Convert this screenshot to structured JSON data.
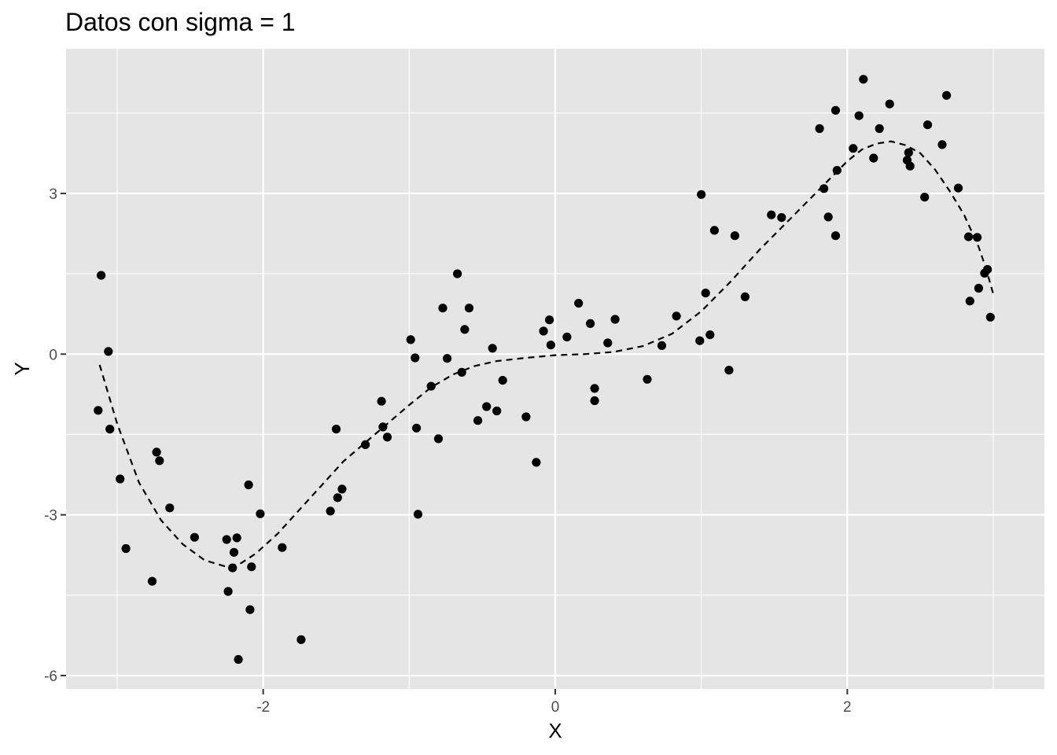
{
  "chart_data": {
    "type": "scatter",
    "title": "Datos con sigma = 1",
    "xlabel": "X",
    "ylabel": "Y",
    "xlim": [
      -3.35,
      3.35
    ],
    "ylim": [
      -6.25,
      5.7
    ],
    "x_ticks": [
      -2,
      0,
      2
    ],
    "x_tick_labels": [
      "-2",
      "0",
      "2"
    ],
    "y_ticks": [
      -6,
      -3,
      0,
      3
    ],
    "y_tick_labels": [
      "-6",
      "-3",
      "0",
      "3"
    ],
    "grid": true,
    "legend": "none",
    "panel_color": "#e5e5e5",
    "grid_color": "#ffffff",
    "point_color": "#000000",
    "curve_style": "dashed",
    "curve_color": "#000000",
    "series": [
      {
        "kind": "points",
        "points": [
          [
            -3.13,
            -1.05
          ],
          [
            -3.11,
            1.47
          ],
          [
            -3.06,
            0.05
          ],
          [
            -3.05,
            -1.4
          ],
          [
            -2.98,
            -2.33
          ],
          [
            -2.94,
            -3.63
          ],
          [
            -2.76,
            -4.24
          ],
          [
            -2.73,
            -1.83
          ],
          [
            -2.71,
            -1.99
          ],
          [
            -2.64,
            -2.87
          ],
          [
            -2.47,
            -3.42
          ],
          [
            -2.25,
            -3.46
          ],
          [
            -2.24,
            -4.43
          ],
          [
            -2.21,
            -3.99
          ],
          [
            -2.2,
            -3.7
          ],
          [
            -2.18,
            -3.43
          ],
          [
            -2.17,
            -5.7
          ],
          [
            -2.1,
            -2.44
          ],
          [
            -2.09,
            -4.77
          ],
          [
            -2.08,
            -3.97
          ],
          [
            -2.02,
            -2.98
          ],
          [
            -1.87,
            -3.61
          ],
          [
            -1.74,
            -5.33
          ],
          [
            -1.54,
            -2.93
          ],
          [
            -1.5,
            -1.4
          ],
          [
            -1.49,
            -2.68
          ],
          [
            -1.46,
            -2.52
          ],
          [
            -1.3,
            -1.69
          ],
          [
            -1.19,
            -0.88
          ],
          [
            -1.18,
            -1.36
          ],
          [
            -1.15,
            -1.55
          ],
          [
            -0.99,
            0.27
          ],
          [
            -0.96,
            -0.07
          ],
          [
            -0.95,
            -1.38
          ],
          [
            -0.94,
            -2.99
          ],
          [
            -0.85,
            -0.6
          ],
          [
            -0.8,
            -1.58
          ],
          [
            -0.77,
            0.86
          ],
          [
            -0.74,
            -0.08
          ],
          [
            -0.67,
            1.5
          ],
          [
            -0.64,
            -0.34
          ],
          [
            -0.62,
            0.46
          ],
          [
            -0.59,
            0.86
          ],
          [
            -0.53,
            -1.24
          ],
          [
            -0.47,
            -0.98
          ],
          [
            -0.43,
            0.11
          ],
          [
            -0.4,
            -1.06
          ],
          [
            -0.36,
            -0.49
          ],
          [
            -0.2,
            -1.17
          ],
          [
            -0.13,
            -2.02
          ],
          [
            -0.08,
            0.43
          ],
          [
            -0.04,
            0.64
          ],
          [
            -0.03,
            0.17
          ],
          [
            0.08,
            0.32
          ],
          [
            0.16,
            0.95
          ],
          [
            0.24,
            0.57
          ],
          [
            0.27,
            -0.64
          ],
          [
            0.27,
            -0.87
          ],
          [
            0.36,
            0.21
          ],
          [
            0.41,
            0.65
          ],
          [
            0.63,
            -0.47
          ],
          [
            0.73,
            0.16
          ],
          [
            0.83,
            0.71
          ],
          [
            0.99,
            0.25
          ],
          [
            1.0,
            2.98
          ],
          [
            1.03,
            1.14
          ],
          [
            1.06,
            0.36
          ],
          [
            1.09,
            2.31
          ],
          [
            1.19,
            -0.3
          ],
          [
            1.23,
            2.21
          ],
          [
            1.3,
            1.07
          ],
          [
            1.48,
            2.6
          ],
          [
            1.55,
            2.55
          ],
          [
            1.81,
            4.21
          ],
          [
            1.84,
            3.09
          ],
          [
            1.87,
            2.56
          ],
          [
            1.92,
            4.55
          ],
          [
            1.92,
            2.21
          ],
          [
            1.93,
            3.43
          ],
          [
            2.04,
            3.84
          ],
          [
            2.08,
            4.45
          ],
          [
            2.11,
            5.13
          ],
          [
            2.18,
            3.66
          ],
          [
            2.22,
            4.21
          ],
          [
            2.29,
            4.67
          ],
          [
            2.41,
            3.62
          ],
          [
            2.42,
            3.76
          ],
          [
            2.43,
            3.51
          ],
          [
            2.53,
            2.93
          ],
          [
            2.55,
            4.28
          ],
          [
            2.65,
            3.91
          ],
          [
            2.68,
            4.83
          ],
          [
            2.76,
            3.1
          ],
          [
            2.83,
            2.19
          ],
          [
            2.84,
            0.99
          ],
          [
            2.89,
            2.18
          ],
          [
            2.9,
            1.23
          ],
          [
            2.94,
            1.51
          ],
          [
            2.96,
            1.58
          ],
          [
            2.98,
            0.69
          ]
        ]
      },
      {
        "kind": "curve",
        "points": [
          [
            -3.12,
            -0.2
          ],
          [
            -3.0,
            -1.3
          ],
          [
            -2.85,
            -2.4
          ],
          [
            -2.7,
            -3.1
          ],
          [
            -2.55,
            -3.55
          ],
          [
            -2.4,
            -3.85
          ],
          [
            -2.25,
            -3.97
          ],
          [
            -2.15,
            -3.9
          ],
          [
            -2.05,
            -3.72
          ],
          [
            -1.9,
            -3.35
          ],
          [
            -1.75,
            -2.9
          ],
          [
            -1.6,
            -2.45
          ],
          [
            -1.45,
            -2.0
          ],
          [
            -1.3,
            -1.65
          ],
          [
            -1.15,
            -1.3
          ],
          [
            -1.0,
            -0.95
          ],
          [
            -0.85,
            -0.62
          ],
          [
            -0.7,
            -0.38
          ],
          [
            -0.55,
            -0.22
          ],
          [
            -0.4,
            -0.13
          ],
          [
            -0.2,
            -0.07
          ],
          [
            0.0,
            -0.02
          ],
          [
            0.2,
            0.0
          ],
          [
            0.4,
            0.04
          ],
          [
            0.6,
            0.15
          ],
          [
            0.8,
            0.38
          ],
          [
            1.0,
            0.8
          ],
          [
            1.2,
            1.35
          ],
          [
            1.4,
            1.95
          ],
          [
            1.6,
            2.5
          ],
          [
            1.8,
            3.05
          ],
          [
            2.0,
            3.6
          ],
          [
            2.1,
            3.82
          ],
          [
            2.2,
            3.93
          ],
          [
            2.3,
            3.97
          ],
          [
            2.4,
            3.9
          ],
          [
            2.5,
            3.75
          ],
          [
            2.6,
            3.45
          ],
          [
            2.7,
            3.05
          ],
          [
            2.8,
            2.6
          ],
          [
            2.9,
            2.0
          ],
          [
            2.95,
            1.6
          ],
          [
            3.0,
            1.12
          ]
        ]
      }
    ]
  }
}
